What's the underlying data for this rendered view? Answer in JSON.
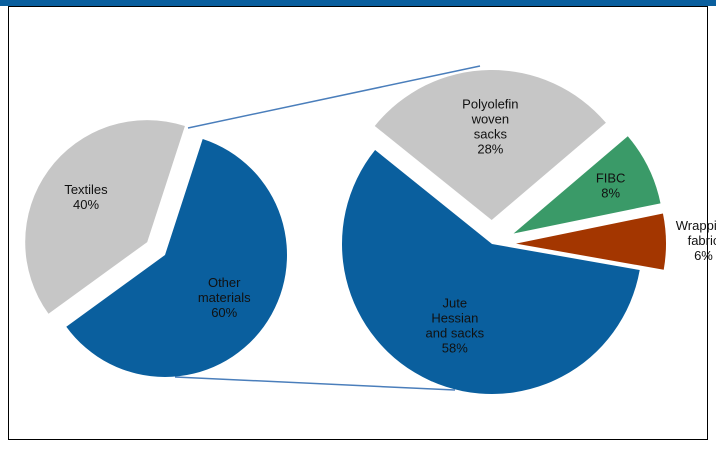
{
  "chart_data": [
    {
      "type": "pie",
      "categories": [
        "Other materials",
        "Textiles"
      ],
      "values": [
        60,
        40
      ],
      "value_labels": [
        "60%",
        "40%"
      ],
      "colors": [
        "#0a5f9e",
        "#c6c6c6"
      ]
    },
    {
      "type": "pie",
      "categories": [
        "Jute Hessian and sacks",
        "Polyolefin woven sacks",
        "FIBC",
        "Wrapping fabric"
      ],
      "values": [
        58,
        28,
        8,
        6
      ],
      "value_labels": [
        "58%",
        "28%",
        "8%",
        "6%"
      ],
      "colors": [
        "#0a5f9e",
        "#c6c6c6",
        "#3a9a68",
        "#a33600"
      ]
    }
  ]
}
